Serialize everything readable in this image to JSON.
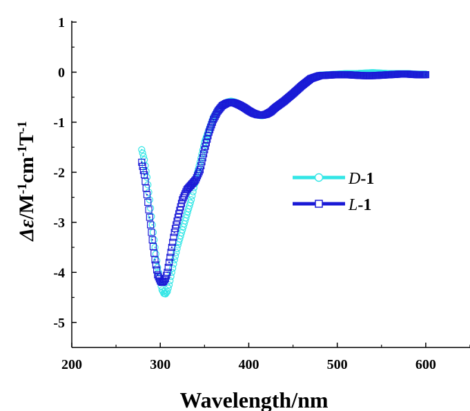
{
  "chart_data": {
    "type": "line",
    "xlabel": "Wavelength/nm",
    "ylabel": {
      "delta": "Δ",
      "epsilon": "ε",
      "rest": "/M",
      "sup1": "-1",
      "cm": "cm",
      "sup2": "-1",
      "T": "T",
      "sup3": "-1"
    },
    "xlim": [
      200,
      650
    ],
    "ylim": [
      -5.5,
      1
    ],
    "xticks": [
      200,
      300,
      400,
      500,
      600
    ],
    "yticks": [
      1,
      0,
      -1,
      -2,
      -3,
      -4,
      -5
    ],
    "grid": false,
    "legend_position": "center-right",
    "series": [
      {
        "name": "D-1",
        "name_prefix": "D",
        "name_suffix": "-1",
        "color": "#33e6e6",
        "marker": "circle",
        "x": [
          279,
          282,
          285,
          288,
          291,
          294,
          297,
          300,
          302,
          304,
          306,
          308,
          310,
          313,
          316,
          320,
          325,
          330,
          335,
          340,
          345,
          350,
          355,
          360,
          365,
          370,
          375,
          380,
          385,
          390,
          395,
          400,
          405,
          410,
          415,
          420,
          425,
          430,
          440,
          450,
          460,
          470,
          480,
          490,
          500,
          510,
          520,
          530,
          540,
          550,
          560,
          570,
          580,
          590,
          600
        ],
        "y": [
          -1.55,
          -1.75,
          -2.1,
          -2.55,
          -3.05,
          -3.5,
          -3.9,
          -4.2,
          -4.35,
          -4.42,
          -4.43,
          -4.38,
          -4.25,
          -4.0,
          -3.75,
          -3.45,
          -3.15,
          -2.85,
          -2.55,
          -2.15,
          -1.8,
          -1.4,
          -1.15,
          -0.9,
          -0.75,
          -0.65,
          -0.6,
          -0.58,
          -0.6,
          -0.65,
          -0.7,
          -0.76,
          -0.82,
          -0.86,
          -0.87,
          -0.85,
          -0.8,
          -0.72,
          -0.6,
          -0.45,
          -0.28,
          -0.12,
          -0.06,
          -0.05,
          -0.04,
          -0.03,
          -0.03,
          -0.02,
          -0.01,
          -0.02,
          -0.03,
          -0.03,
          -0.03,
          -0.04,
          -0.04
        ]
      },
      {
        "name": "L-1",
        "name_prefix": "L",
        "name_suffix": "-1",
        "color": "#1a1ad6",
        "marker": "square",
        "x": [
          279,
          282,
          285,
          288,
          291,
          294,
          297,
          300,
          302,
          304,
          306,
          308,
          310,
          313,
          316,
          320,
          325,
          330,
          335,
          340,
          345,
          350,
          355,
          360,
          365,
          370,
          375,
          380,
          385,
          390,
          395,
          400,
          405,
          410,
          415,
          420,
          425,
          430,
          440,
          450,
          460,
          470,
          480,
          490,
          500,
          510,
          520,
          530,
          540,
          550,
          560,
          570,
          580,
          590,
          600
        ],
        "y": [
          -1.8,
          -2.05,
          -2.45,
          -2.9,
          -3.35,
          -3.75,
          -4.05,
          -4.17,
          -4.2,
          -4.18,
          -4.12,
          -4.0,
          -3.8,
          -3.5,
          -3.2,
          -2.9,
          -2.55,
          -2.35,
          -2.25,
          -2.15,
          -1.95,
          -1.55,
          -1.2,
          -0.95,
          -0.78,
          -0.67,
          -0.62,
          -0.6,
          -0.62,
          -0.66,
          -0.71,
          -0.77,
          -0.82,
          -0.85,
          -0.86,
          -0.84,
          -0.79,
          -0.71,
          -0.58,
          -0.43,
          -0.27,
          -0.13,
          -0.07,
          -0.06,
          -0.05,
          -0.05,
          -0.06,
          -0.07,
          -0.07,
          -0.06,
          -0.05,
          -0.04,
          -0.04,
          -0.05,
          -0.05
        ]
      }
    ]
  }
}
